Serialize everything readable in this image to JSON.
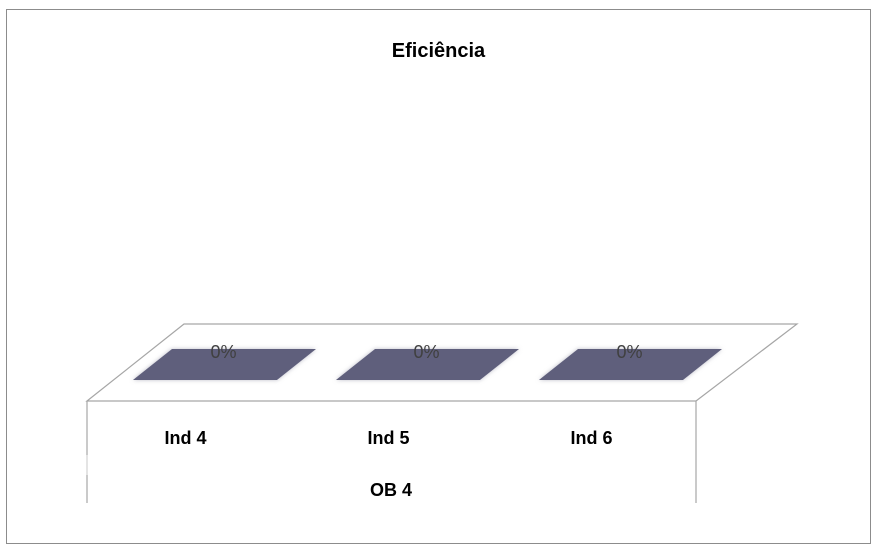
{
  "chart_data": {
    "type": "bar",
    "title": "Eficiência",
    "categories": [
      "Ind 4",
      "Ind 5",
      "Ind 6"
    ],
    "group_label": "OB 4",
    "series": [
      {
        "values": [
          0,
          0,
          0
        ]
      }
    ],
    "data_labels": [
      "0%",
      "0%",
      "0%"
    ],
    "value_format": "percent",
    "grid": false,
    "legend": "none",
    "three_d": true,
    "colors": {
      "bar": "#5f5f7c",
      "floor_outline": "#a6a6a6",
      "frame": "#8c8c8c"
    }
  }
}
